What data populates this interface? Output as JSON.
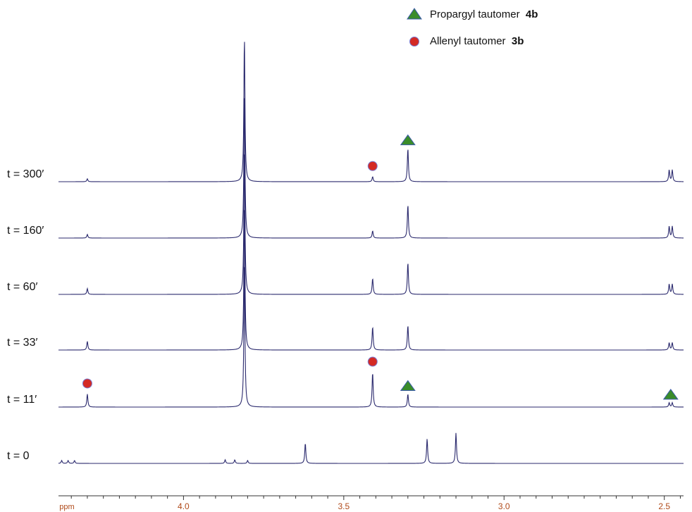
{
  "chart_data": {
    "type": "line",
    "title": "",
    "xlabel": "ppm",
    "ylabel": "",
    "x_axis_reversed": true,
    "xlim": [
      4.39,
      2.44
    ],
    "x_ticks": [
      4.0,
      3.5,
      3.0,
      2.5
    ],
    "x_tick_labels": [
      "4.0",
      "3.5",
      "3.0",
      "2.5"
    ],
    "grid": false,
    "legend_position": "top-right",
    "legend": [
      {
        "marker": "triangle",
        "color": "#3a8c2a",
        "text": "Propargyl tautomer",
        "bold": "4b"
      },
      {
        "marker": "circle",
        "color": "#d42a24",
        "text": "Allenyl tautomer",
        "bold": "3b"
      }
    ],
    "series": [
      {
        "name": "t = 300′",
        "peaks": [
          {
            "ppm": 4.3,
            "intensity": 0.02
          },
          {
            "ppm": 3.81,
            "intensity": 1.0
          },
          {
            "ppm": 3.41,
            "intensity": 0.035
          },
          {
            "ppm": 3.3,
            "intensity": 0.23
          },
          {
            "ppm": 2.48,
            "intensity": 0.08,
            "doublet": true
          }
        ],
        "markers": [
          {
            "ppm": 3.41,
            "type": "circle"
          },
          {
            "ppm": 3.3,
            "type": "triangle"
          }
        ]
      },
      {
        "name": "t = 160′",
        "peaks": [
          {
            "ppm": 4.3,
            "intensity": 0.025
          },
          {
            "ppm": 3.81,
            "intensity": 1.0
          },
          {
            "ppm": 3.41,
            "intensity": 0.05
          },
          {
            "ppm": 3.3,
            "intensity": 0.23
          },
          {
            "ppm": 2.48,
            "intensity": 0.08,
            "doublet": true
          }
        ],
        "markers": []
      },
      {
        "name": "t = 60′",
        "peaks": [
          {
            "ppm": 4.3,
            "intensity": 0.04
          },
          {
            "ppm": 3.81,
            "intensity": 1.0
          },
          {
            "ppm": 3.41,
            "intensity": 0.11
          },
          {
            "ppm": 3.3,
            "intensity": 0.22
          },
          {
            "ppm": 2.48,
            "intensity": 0.07,
            "doublet": true
          }
        ],
        "markers": []
      },
      {
        "name": "t = 33′",
        "peaks": [
          {
            "ppm": 4.3,
            "intensity": 0.06
          },
          {
            "ppm": 3.81,
            "intensity": 1.0
          },
          {
            "ppm": 3.41,
            "intensity": 0.16
          },
          {
            "ppm": 3.3,
            "intensity": 0.17
          },
          {
            "ppm": 2.48,
            "intensity": 0.05,
            "doublet": true
          }
        ],
        "markers": []
      },
      {
        "name": "t = 11′",
        "peaks": [
          {
            "ppm": 4.3,
            "intensity": 0.09
          },
          {
            "ppm": 3.81,
            "intensity": 1.0
          },
          {
            "ppm": 3.41,
            "intensity": 0.24
          },
          {
            "ppm": 3.3,
            "intensity": 0.09
          },
          {
            "ppm": 2.48,
            "intensity": 0.03,
            "doublet": true
          }
        ],
        "markers": [
          {
            "ppm": 4.3,
            "type": "circle"
          },
          {
            "ppm": 3.41,
            "type": "circle"
          },
          {
            "ppm": 3.3,
            "type": "triangle"
          },
          {
            "ppm": 2.48,
            "type": "triangle"
          }
        ]
      },
      {
        "name": "t = 0",
        "peaks": [
          {
            "ppm": 4.38,
            "intensity": 0.02
          },
          {
            "ppm": 4.36,
            "intensity": 0.02
          },
          {
            "ppm": 4.34,
            "intensity": 0.02
          },
          {
            "ppm": 3.87,
            "intensity": 0.025
          },
          {
            "ppm": 3.84,
            "intensity": 0.025
          },
          {
            "ppm": 3.8,
            "intensity": 0.02
          },
          {
            "ppm": 3.62,
            "intensity": 0.14
          },
          {
            "ppm": 3.24,
            "intensity": 0.17
          },
          {
            "ppm": 3.15,
            "intensity": 0.21
          }
        ],
        "markers": []
      }
    ]
  }
}
